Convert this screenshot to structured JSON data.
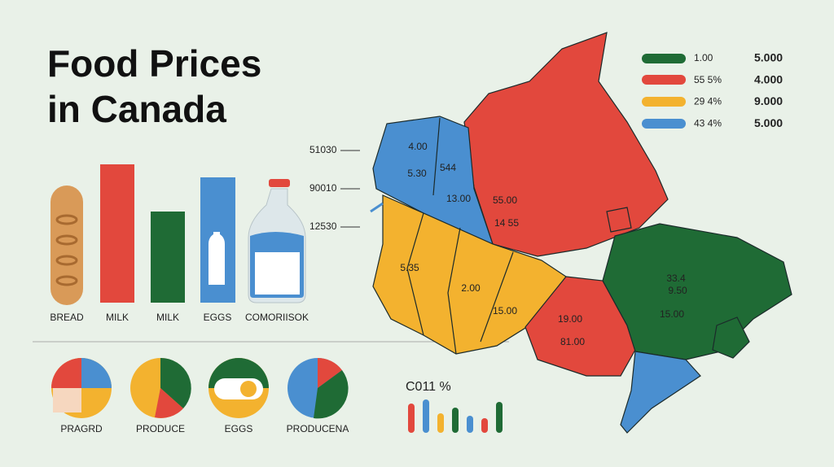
{
  "header": {
    "title_lines": [
      "Food Prices",
      "in Canada"
    ]
  },
  "bar_labels": [
    "BREAD",
    "MILK",
    "MILK",
    "EGGS",
    "COMORIISOK"
  ],
  "arrow_labels": [
    "51030",
    "90010",
    "12530"
  ],
  "pie_labels": [
    "PRAGRD",
    "PRODUCE",
    "EGGS",
    "PRODUCENA"
  ],
  "mini_chart_label": "C011 %",
  "legend": [
    {
      "label": "1.00",
      "value": "5.000"
    },
    {
      "label": "55 5%",
      "value": "4.000"
    },
    {
      "label": "29 4%",
      "value": "9.000"
    },
    {
      "label": "43 4%",
      "value": "5.000"
    }
  ],
  "map_labels": [
    "4.00",
    "5.30",
    "544",
    "13.00",
    "55.00",
    "14 55",
    "5.35",
    "2.00",
    "15.00",
    "19.00",
    "81.00",
    "33.4",
    "9.50",
    "15.00"
  ]
}
